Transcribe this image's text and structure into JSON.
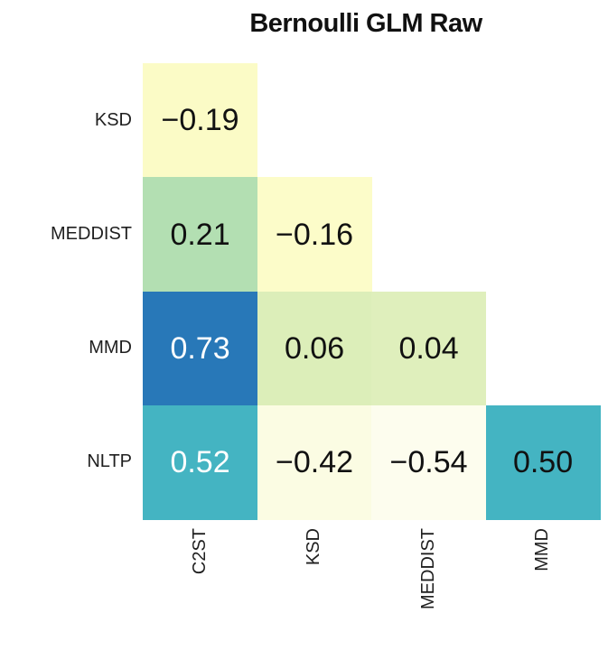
{
  "title": "Bernoulli GLM Raw",
  "colors": {
    "background": "#ffffff",
    "title_text": "#111111",
    "axis_label_text": "#1f1f1f",
    "cell_text_dark": "#111111",
    "cell_text_light": "#ffffff",
    "scale_low": "#fdfdee",
    "scale_mid": "#b3dfb2",
    "scale_high": "#2878b8"
  },
  "chart_data": {
    "type": "heatmap",
    "title": "Bernoulli GLM Raw",
    "subtype": "lower-triangular correlation matrix",
    "colormap": "YlGnBu",
    "legend": "none",
    "row_labels": [
      "KSD",
      "MEDDIST",
      "MMD",
      "NLTP"
    ],
    "col_labels": [
      "C2ST",
      "KSD",
      "MEDDIST",
      "MMD"
    ],
    "matrix": [
      [
        -0.19,
        null,
        null,
        null
      ],
      [
        0.21,
        -0.16,
        null,
        null
      ],
      [
        0.73,
        0.06,
        0.04,
        null
      ],
      [
        0.52,
        -0.42,
        -0.54,
        0.5
      ]
    ],
    "cells": [
      {
        "row": 0,
        "col": 0,
        "row_label": "KSD",
        "col_label": "C2ST",
        "value": -0.19,
        "label": "−0.19",
        "bg": "#fbfbc6",
        "fg": "#111111"
      },
      {
        "row": 1,
        "col": 0,
        "row_label": "MEDDIST",
        "col_label": "C2ST",
        "value": 0.21,
        "label": "0.21",
        "bg": "#b3dfb2",
        "fg": "#111111"
      },
      {
        "row": 1,
        "col": 1,
        "row_label": "MEDDIST",
        "col_label": "KSD",
        "value": -0.16,
        "label": "−0.16",
        "bg": "#fcfcc9",
        "fg": "#111111"
      },
      {
        "row": 2,
        "col": 0,
        "row_label": "MMD",
        "col_label": "C2ST",
        "value": 0.73,
        "label": "0.73",
        "bg": "#2878b8",
        "fg": "#ffffff"
      },
      {
        "row": 2,
        "col": 1,
        "row_label": "MMD",
        "col_label": "KSD",
        "value": 0.06,
        "label": "0.06",
        "bg": "#dceeb9",
        "fg": "#111111"
      },
      {
        "row": 2,
        "col": 2,
        "row_label": "MMD",
        "col_label": "MEDDIST",
        "value": 0.04,
        "label": "0.04",
        "bg": "#dfefbc",
        "fg": "#111111"
      },
      {
        "row": 3,
        "col": 0,
        "row_label": "NLTP",
        "col_label": "C2ST",
        "value": 0.52,
        "label": "0.52",
        "bg": "#44b4c2",
        "fg": "#ffffff"
      },
      {
        "row": 3,
        "col": 1,
        "row_label": "NLTP",
        "col_label": "KSD",
        "value": -0.42,
        "label": "−0.42",
        "bg": "#fbfce3",
        "fg": "#111111"
      },
      {
        "row": 3,
        "col": 2,
        "row_label": "NLTP",
        "col_label": "MEDDIST",
        "value": -0.54,
        "label": "−0.54",
        "bg": "#fdfdee",
        "fg": "#111111"
      },
      {
        "row": 3,
        "col": 3,
        "row_label": "NLTP",
        "col_label": "MMD",
        "value": 0.5,
        "label": "0.50",
        "bg": "#44b4c2",
        "fg": "#111111"
      }
    ]
  }
}
